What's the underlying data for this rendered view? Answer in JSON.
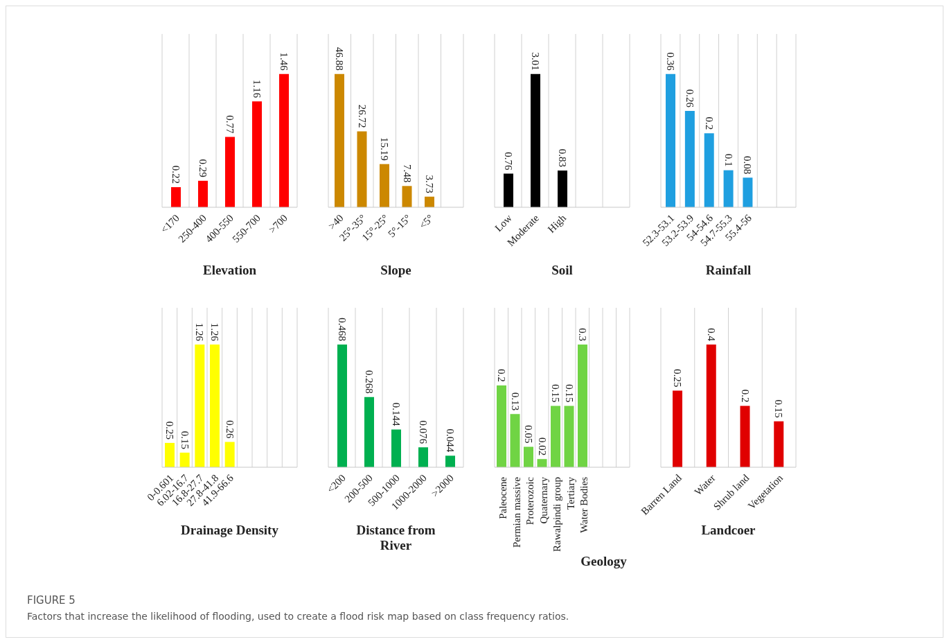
{
  "chart_data": [
    {
      "type": "bar",
      "title": "Elevation",
      "categories": [
        "<170",
        "250-400",
        "400-550",
        "550-700",
        ">700"
      ],
      "values": [
        0.22,
        0.29,
        0.77,
        1.16,
        1.46
      ],
      "color": "#ff0000",
      "data_labels": true,
      "grid": "x"
    },
    {
      "type": "bar",
      "title": "Slope",
      "categories": [
        ">40",
        "25°-35°",
        "15°-25°",
        "5°-15°",
        "<5°",
        null
      ],
      "values": [
        46.88,
        26.72,
        15.19,
        7.48,
        3.73,
        null
      ],
      "color": "#cc8800",
      "data_labels": true,
      "grid": "x"
    },
    {
      "type": "bar",
      "title": "Soil",
      "categories": [
        "Low",
        "Moderate",
        "High",
        null,
        null
      ],
      "values": [
        0.76,
        3.01,
        0.83,
        null,
        null
      ],
      "color": "#000000",
      "data_labels": true,
      "grid": "x"
    },
    {
      "type": "bar",
      "title": "Rainfall",
      "categories": [
        "52.3-53.1",
        "53.2-53.9",
        "54-54.6",
        "54.7-55.3",
        "55.4-56",
        null,
        null
      ],
      "values": [
        0.36,
        0.26,
        0.2,
        0.1,
        0.08,
        null,
        null
      ],
      "color": "#1f9fe0",
      "data_labels": true,
      "grid": "x"
    },
    {
      "type": "bar",
      "title": "Drainage Density",
      "categories": [
        "0-0.601",
        "6.02-16.7",
        "16.8-27.7",
        "27.8-41.8",
        "41.9-66.6",
        null,
        null,
        null,
        null
      ],
      "values": [
        0.25,
        0.15,
        1.26,
        1.26,
        0.26,
        null,
        null,
        null,
        null
      ],
      "color": "#ffff00",
      "data_labels": true,
      "grid": "x"
    },
    {
      "type": "bar",
      "title": "Distance from River",
      "categories": [
        "<200",
        "200-500",
        "500-1000",
        "1000-2000",
        ">2000"
      ],
      "values": [
        0.468,
        0.268,
        0.144,
        0.076,
        0.044
      ],
      "color": "#00b050",
      "data_labels": true,
      "grid": "x"
    },
    {
      "type": "bar",
      "title": "Geology",
      "categories": [
        "Paleocene",
        "Permian massive",
        "Proterozoic",
        "Quaternary",
        "Rawalpindi group",
        "Tertiary",
        "Water Bodies",
        null,
        null,
        null
      ],
      "values": [
        0.2,
        0.13,
        0.05,
        0.02,
        0.15,
        0.15,
        0.3,
        null,
        null,
        null
      ],
      "color": "#70d444",
      "data_labels": true,
      "grid": "x"
    },
    {
      "type": "bar",
      "title": "Landcoer",
      "categories": [
        "Barren Land",
        "Water",
        "Shrub land",
        "Vegetation"
      ],
      "values": [
        0.25,
        0.4,
        0.2,
        0.15
      ],
      "color": "#e00000",
      "data_labels": true,
      "grid": "x",
      "annotations": [
        "FIGURE 5",
        "Factors that increase the likelihood of flooding, used to create a flood risk map based on class frequency ratios."
      ]
    }
  ]
}
